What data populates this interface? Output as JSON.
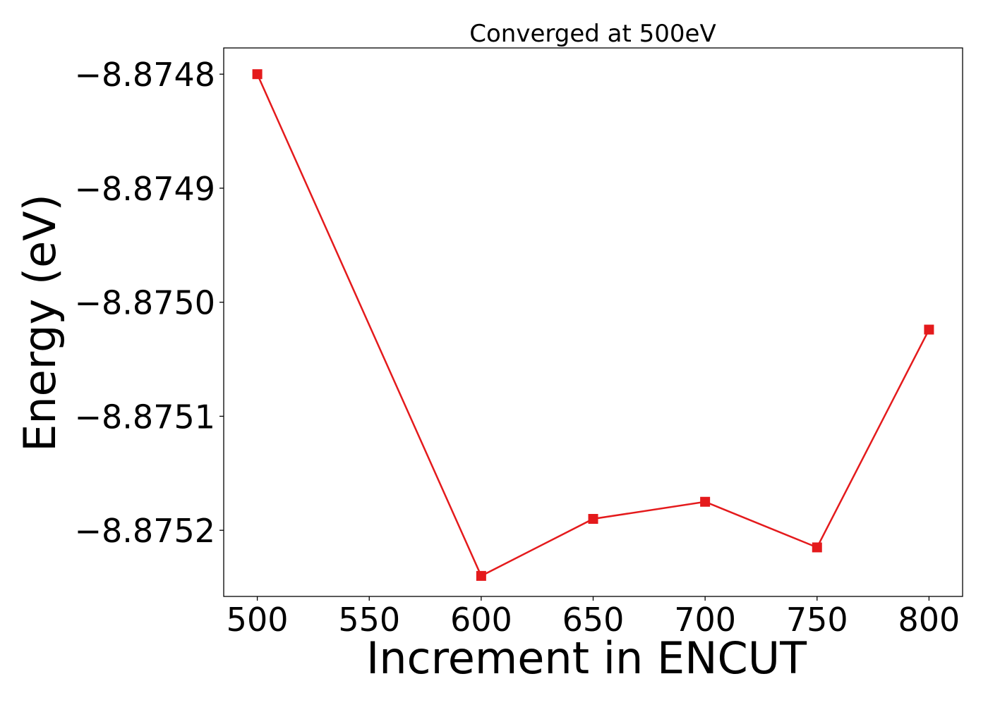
{
  "chart_data": {
    "type": "line",
    "title": "Converged at 500eV",
    "xlabel": "Increment in ENCUT",
    "ylabel": "Energy (eV)",
    "x": [
      500,
      600,
      650,
      700,
      750,
      800
    ],
    "series": [
      {
        "values": [
          -8.8748,
          -8.87524,
          -8.87519,
          -8.875175,
          -8.875215,
          -8.875024
        ],
        "color": "#e41a1c",
        "marker": "square"
      }
    ],
    "xlim": [
      485,
      815
    ],
    "ylim": [
      -8.875258,
      -8.874777
    ],
    "xticks": [
      500,
      550,
      600,
      650,
      700,
      750,
      800
    ],
    "xtick_labels": [
      "500",
      "550",
      "600",
      "650",
      "700",
      "750",
      "800"
    ],
    "yticks": [
      -8.8748,
      -8.8749,
      -8.875,
      -8.8751,
      -8.8752
    ],
    "ytick_labels": [
      "−8.8748",
      "−8.8749",
      "−8.8750",
      "−8.8751",
      "−8.8752"
    ],
    "grid": false,
    "legend": "none"
  }
}
